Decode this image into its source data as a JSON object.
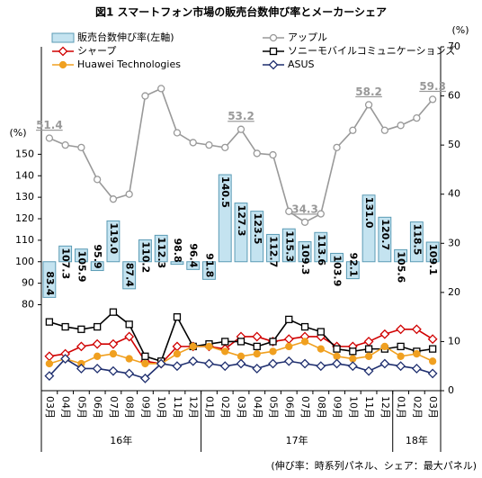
{
  "chart_data": {
    "type": "bar_line",
    "title": "図1 スマートフォン市場の販売台数伸び率とメーカーシェア",
    "ylabel": "(%)",
    "y2label": "(%)",
    "footnote": "(伸び率：時系列パネル、シェア：最大パネル)",
    "categories": [
      "03月",
      "04月",
      "05月",
      "06月",
      "07月",
      "08月",
      "09月",
      "10月",
      "11月",
      "12月",
      "01月",
      "02月",
      "03月",
      "04月",
      "05月",
      "06月",
      "07月",
      "08月",
      "09月",
      "10月",
      "11月",
      "12月",
      "01月",
      "02月",
      "03月"
    ],
    "groups": [
      {
        "label": "16年",
        "count": 10
      },
      {
        "label": "17年",
        "count": 12
      },
      {
        "label": "18年",
        "count": 3
      }
    ],
    "ylim": [
      40,
      200
    ],
    "yticks": [
      80,
      90,
      100,
      110,
      120,
      130,
      140,
      150
    ],
    "y2lim": [
      0,
      70
    ],
    "y2ticks": [
      0,
      10,
      20,
      30,
      40,
      50,
      60,
      70
    ],
    "bar_baseline": 100,
    "series": [
      {
        "name": "販売台数伸び率(左軸)",
        "type": "bar",
        "color": "#c4e3f0",
        "stroke": "#5b9bb5",
        "values": [
          83.4,
          107.3,
          105.9,
          95.9,
          119.0,
          87.4,
          110.2,
          112.3,
          98.8,
          96.4,
          91.8,
          140.5,
          127.3,
          123.5,
          112.7,
          115.3,
          109.3,
          113.6,
          103.9,
          92.1,
          131.0,
          120.7,
          105.6,
          118.5,
          109.1
        ],
        "value_labels": [
          "83.4",
          "107.3",
          "105.9",
          "95.9",
          "119.0",
          "87.4",
          "110.2",
          "112.3",
          "98.8",
          "96.4",
          "91.8",
          "140.5",
          "127.3",
          "123.5",
          "112.7",
          "115.3",
          "109.3",
          "113.6",
          "103.9",
          "92.1",
          "131.0",
          "120.7",
          "105.6",
          "118.5",
          "109.1"
        ]
      },
      {
        "name": "アップル",
        "type": "line",
        "axis": "y2",
        "color": "#999999",
        "marker": "circle",
        "fill": "#ffffff",
        "values": [
          51.4,
          50,
          49.5,
          43,
          39,
          40,
          60,
          61.5,
          52.5,
          50.5,
          50,
          49.5,
          53.2,
          48.3,
          48,
          36.5,
          34.3,
          36,
          49.5,
          53,
          58.2,
          53,
          54,
          55.5,
          59.3
        ],
        "value_labels": [
          "51.4",
          null,
          null,
          null,
          null,
          null,
          null,
          null,
          null,
          null,
          null,
          null,
          "53.2",
          null,
          null,
          null,
          "34.3",
          null,
          null,
          null,
          "58.2",
          null,
          null,
          null,
          "59.3"
        ]
      },
      {
        "name": "シャープ",
        "type": "line",
        "axis": "y2",
        "color": "#d00000",
        "marker": "diamond",
        "fill": "#ffffff",
        "values": [
          7,
          7.5,
          9,
          9.5,
          9.5,
          11,
          6,
          5.5,
          9,
          9,
          9,
          8.5,
          11,
          11,
          10,
          10.5,
          11,
          11,
          9,
          9,
          10,
          11.5,
          12.5,
          12.5,
          10.5
        ]
      },
      {
        "name": "ソニーモバイルコミュニケーションズ",
        "type": "line",
        "axis": "y2",
        "color": "#000000",
        "marker": "square",
        "fill": "#ffffff",
        "values": [
          14,
          13,
          12.5,
          13,
          16,
          13.5,
          7,
          6,
          15,
          9,
          9.5,
          10,
          10,
          9,
          10,
          14.5,
          13,
          12,
          8.5,
          8,
          8.5,
          8.5,
          9,
          8,
          8.5
        ]
      },
      {
        "name": "Huawei Technologies",
        "type": "line",
        "axis": "y2",
        "color": "#f0a020",
        "marker": "circle",
        "fill": "#f0a020",
        "values": [
          5.5,
          6.5,
          5.5,
          7,
          7.5,
          6.5,
          5.5,
          5.5,
          7.5,
          9,
          9,
          8,
          7,
          7.5,
          8,
          9,
          10,
          8.5,
          7,
          6.5,
          7,
          9,
          7,
          7.5,
          6
        ]
      },
      {
        "name": "ASUS",
        "type": "line",
        "axis": "y2",
        "color": "#1f2f6f",
        "marker": "diamond",
        "fill": "#ffffff",
        "values": [
          3,
          6.5,
          4.5,
          4.5,
          4,
          3.5,
          2.5,
          5.5,
          5,
          6,
          5.5,
          5,
          5.5,
          4.5,
          5.5,
          6,
          5.5,
          5,
          5.5,
          5,
          4,
          5.5,
          5,
          4.5,
          3.5
        ]
      }
    ]
  }
}
